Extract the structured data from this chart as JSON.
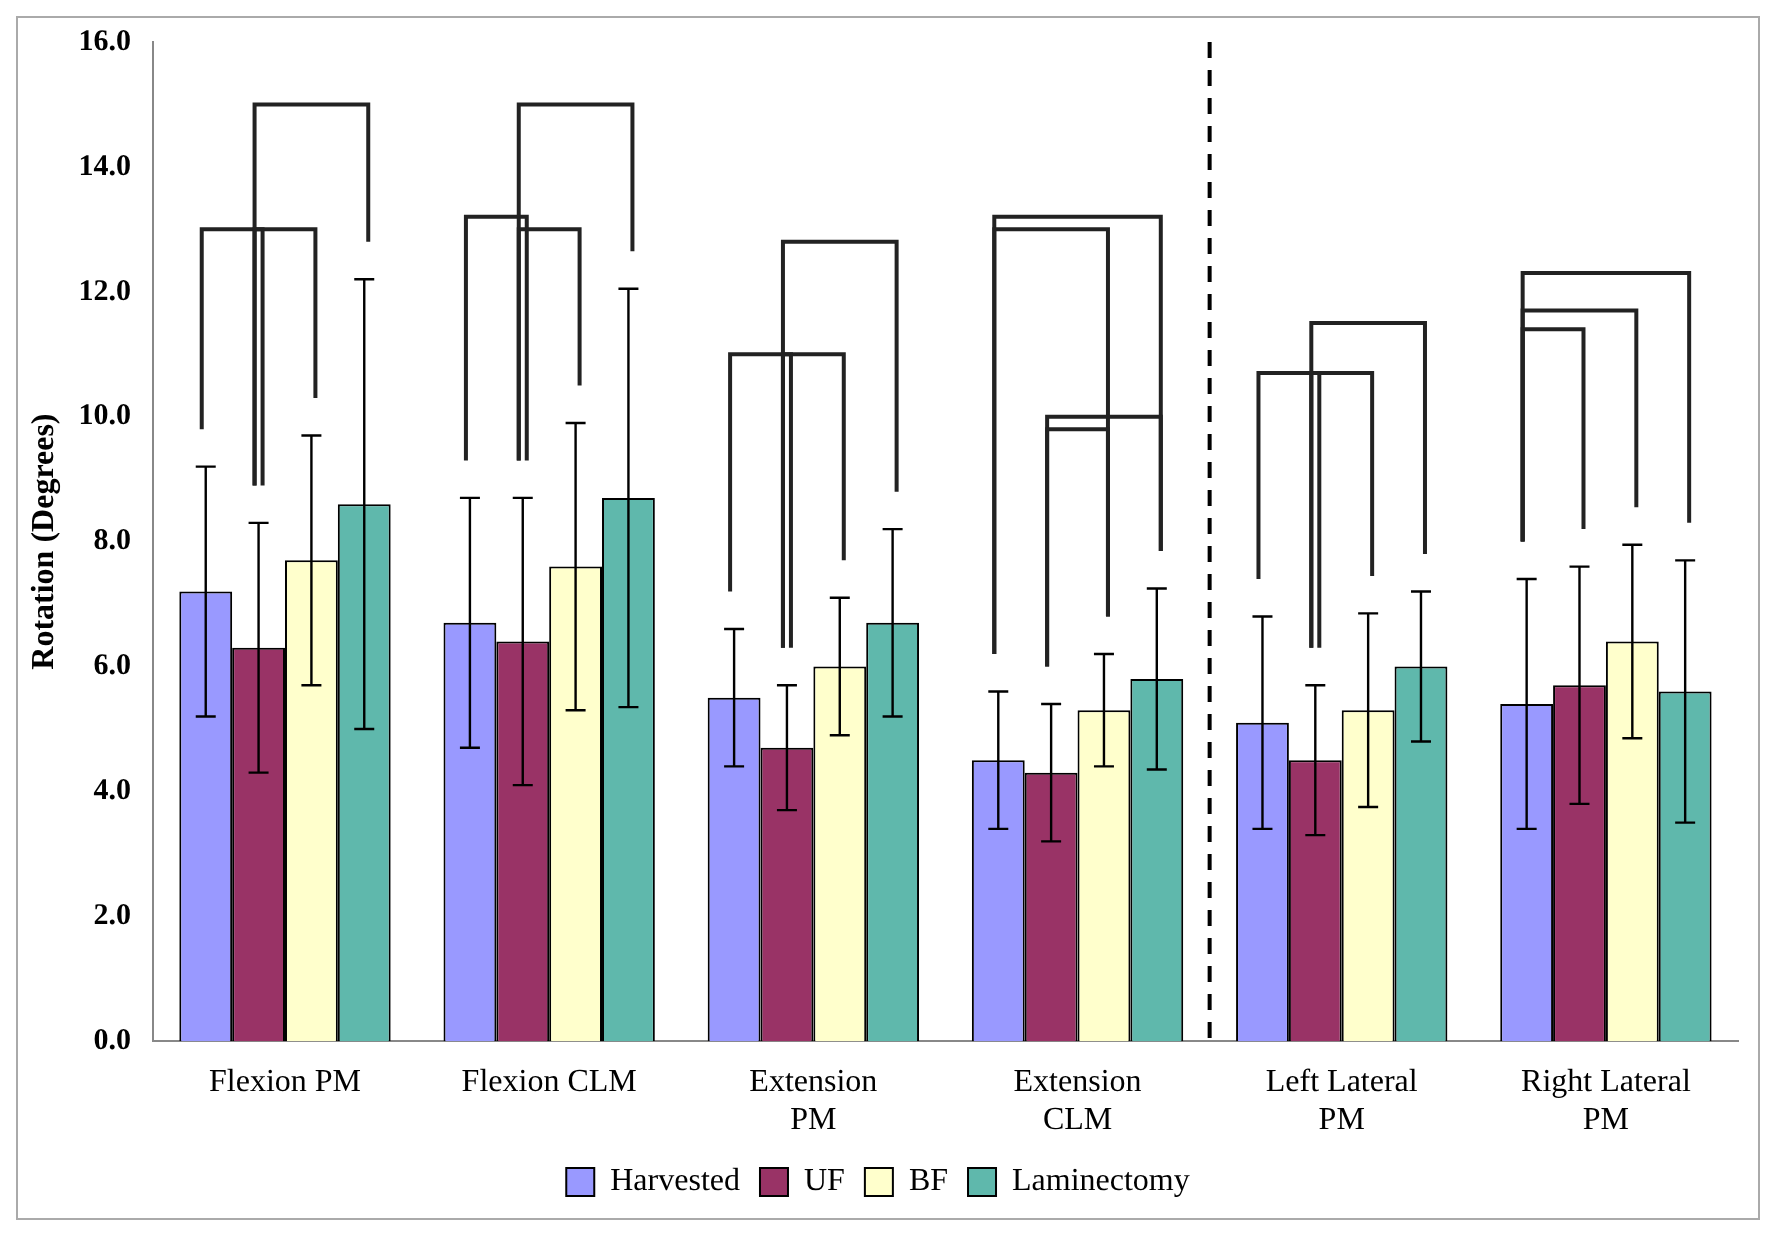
{
  "chart_data": {
    "type": "bar",
    "ylabel": "Rotation (Degrees)",
    "categories": [
      "Flexion PM",
      "Flexion CLM",
      "Extension PM",
      "Extension CLM",
      "Left Lateral PM",
      "Right Lateral PM"
    ],
    "series": [
      {
        "name": "Harvested",
        "color": "#9999ff",
        "values": [
          7.2,
          6.7,
          5.5,
          4.5,
          5.1,
          5.4
        ],
        "errors": [
          2.0,
          2.0,
          1.1,
          1.1,
          1.7,
          2.0
        ]
      },
      {
        "name": "UF",
        "color": "#993366",
        "values": [
          6.3,
          6.4,
          4.7,
          4.3,
          4.5,
          5.7
        ],
        "errors": [
          2.0,
          2.3,
          1.0,
          1.1,
          1.2,
          1.9
        ]
      },
      {
        "name": "BF",
        "color": "#ffffcc",
        "values": [
          7.7,
          7.6,
          6.0,
          5.3,
          5.3,
          6.4
        ],
        "errors": [
          2.0,
          2.3,
          1.1,
          0.9,
          1.55,
          1.55
        ]
      },
      {
        "name": "Laminectomy",
        "color": "#5fb8ac",
        "values": [
          8.6,
          8.7,
          6.7,
          5.8,
          6.0,
          5.6
        ],
        "errors": [
          3.6,
          3.35,
          1.5,
          1.45,
          1.2,
          2.1
        ]
      }
    ],
    "ylim": [
      0,
      16
    ],
    "yticks": [
      {
        "value": 0,
        "label": "0.0"
      },
      {
        "value": 2,
        "label": "2.0"
      },
      {
        "value": 4,
        "label": "4.0"
      },
      {
        "value": 6,
        "label": "6.0"
      },
      {
        "value": 8,
        "label": "8.0"
      },
      {
        "value": 10,
        "label": "10.0"
      },
      {
        "value": 12,
        "label": "12.0"
      },
      {
        "value": 14,
        "label": "14.0"
      },
      {
        "value": 16,
        "label": "16.0"
      }
    ],
    "legend": "bottom",
    "grid": false
  }
}
